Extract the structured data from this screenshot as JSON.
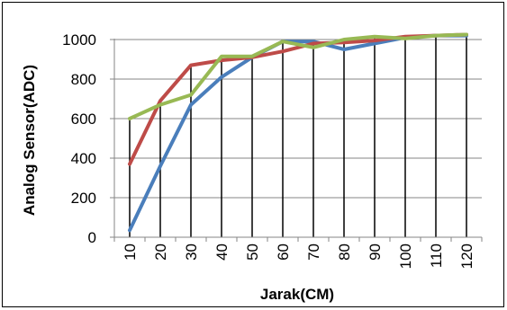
{
  "chart_data": {
    "type": "line",
    "xlabel": "Jarak(CM)",
    "ylabel": "Analog Sensor(ADC)",
    "categories": [
      "10",
      "20",
      "30",
      "40",
      "50",
      "60",
      "70",
      "80",
      "90",
      "100",
      "110",
      "120"
    ],
    "ylim": [
      0,
      1000
    ],
    "yticks": [
      0,
      200,
      400,
      600,
      800,
      1000
    ],
    "grid": "horizontal",
    "drop_lines": true,
    "legend": "none",
    "series": [
      {
        "color": "#4a7ebb",
        "values": [
          35,
          360,
          670,
          810,
          910,
          990,
          990,
          950,
          980,
          1010,
          1020,
          1020
        ]
      },
      {
        "color": "#be4b48",
        "values": [
          370,
          690,
          870,
          895,
          910,
          940,
          980,
          985,
          995,
          1015,
          1020,
          1025
        ]
      },
      {
        "color": "#98b954",
        "values": [
          600,
          670,
          720,
          915,
          915,
          990,
          960,
          1000,
          1015,
          1005,
          1020,
          1025
        ]
      }
    ]
  }
}
